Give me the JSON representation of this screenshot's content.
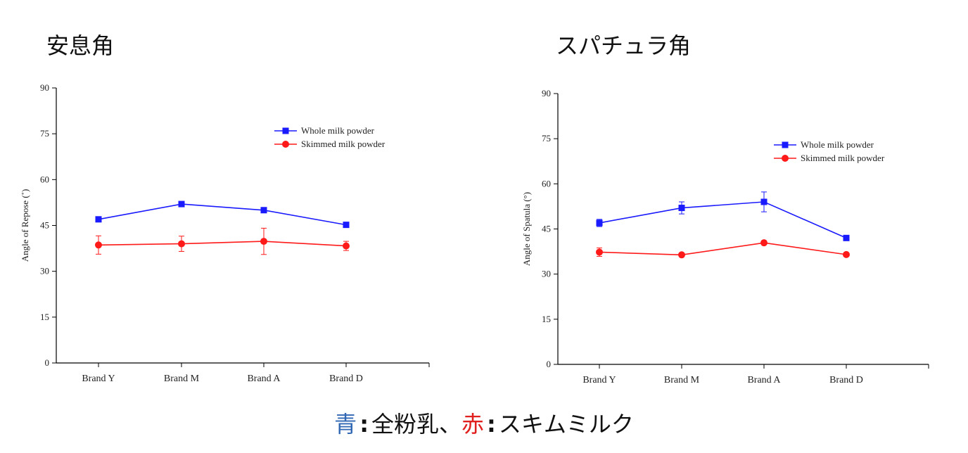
{
  "titles": {
    "left": "安息角",
    "right": "スパチュラ角"
  },
  "caption": {
    "blue_word": "青",
    "blue_rest": "全粉乳、",
    "red_word": "赤",
    "red_rest": "スキムミルク",
    "colon": ":"
  },
  "colors": {
    "whole": "#1a1aff",
    "skimmed": "#ff1a1a",
    "caption_blue": "#2f67b3",
    "caption_red": "#e0201e"
  },
  "chart_data": [
    {
      "type": "line",
      "ylabel": "Angle of Repose (˚)",
      "ylim": [
        0,
        90
      ],
      "yticks": [
        0,
        15,
        30,
        45,
        60,
        75,
        90
      ],
      "categories": [
        "Brand Y",
        "Brand M",
        "Brand A",
        "Brand D"
      ],
      "legend_position": "top-right",
      "series": [
        {
          "name": "Whole milk powder",
          "marker": "square",
          "color": "#1a1aff",
          "values": [
            47,
            52,
            50,
            45.2
          ],
          "errors": [
            0.8,
            0.6,
            0.6,
            0.6
          ]
        },
        {
          "name": "Skimmed milk powder",
          "marker": "circle",
          "color": "#ff1a1a",
          "values": [
            38.6,
            39.0,
            39.8,
            38.3
          ],
          "errors": [
            3.0,
            2.5,
            4.3,
            1.5
          ]
        }
      ]
    },
    {
      "type": "line",
      "ylabel": "Angle of Spatula (°)",
      "ylim": [
        0,
        90
      ],
      "yticks": [
        0,
        15,
        30,
        45,
        60,
        75,
        90
      ],
      "categories": [
        "Brand Y",
        "Brand M",
        "Brand A",
        "Brand D"
      ],
      "legend_position": "top-right",
      "series": [
        {
          "name": "Whole milk powder",
          "marker": "square",
          "color": "#1a1aff",
          "values": [
            47,
            52,
            54,
            42
          ],
          "errors": [
            1.2,
            2.0,
            3.3,
            0.5
          ]
        },
        {
          "name": "Skimmed milk powder",
          "marker": "circle",
          "color": "#ff1a1a",
          "values": [
            37.3,
            36.4,
            40.4,
            36.5
          ],
          "errors": [
            1.4,
            0.6,
            0.6,
            0.6
          ]
        }
      ]
    }
  ]
}
